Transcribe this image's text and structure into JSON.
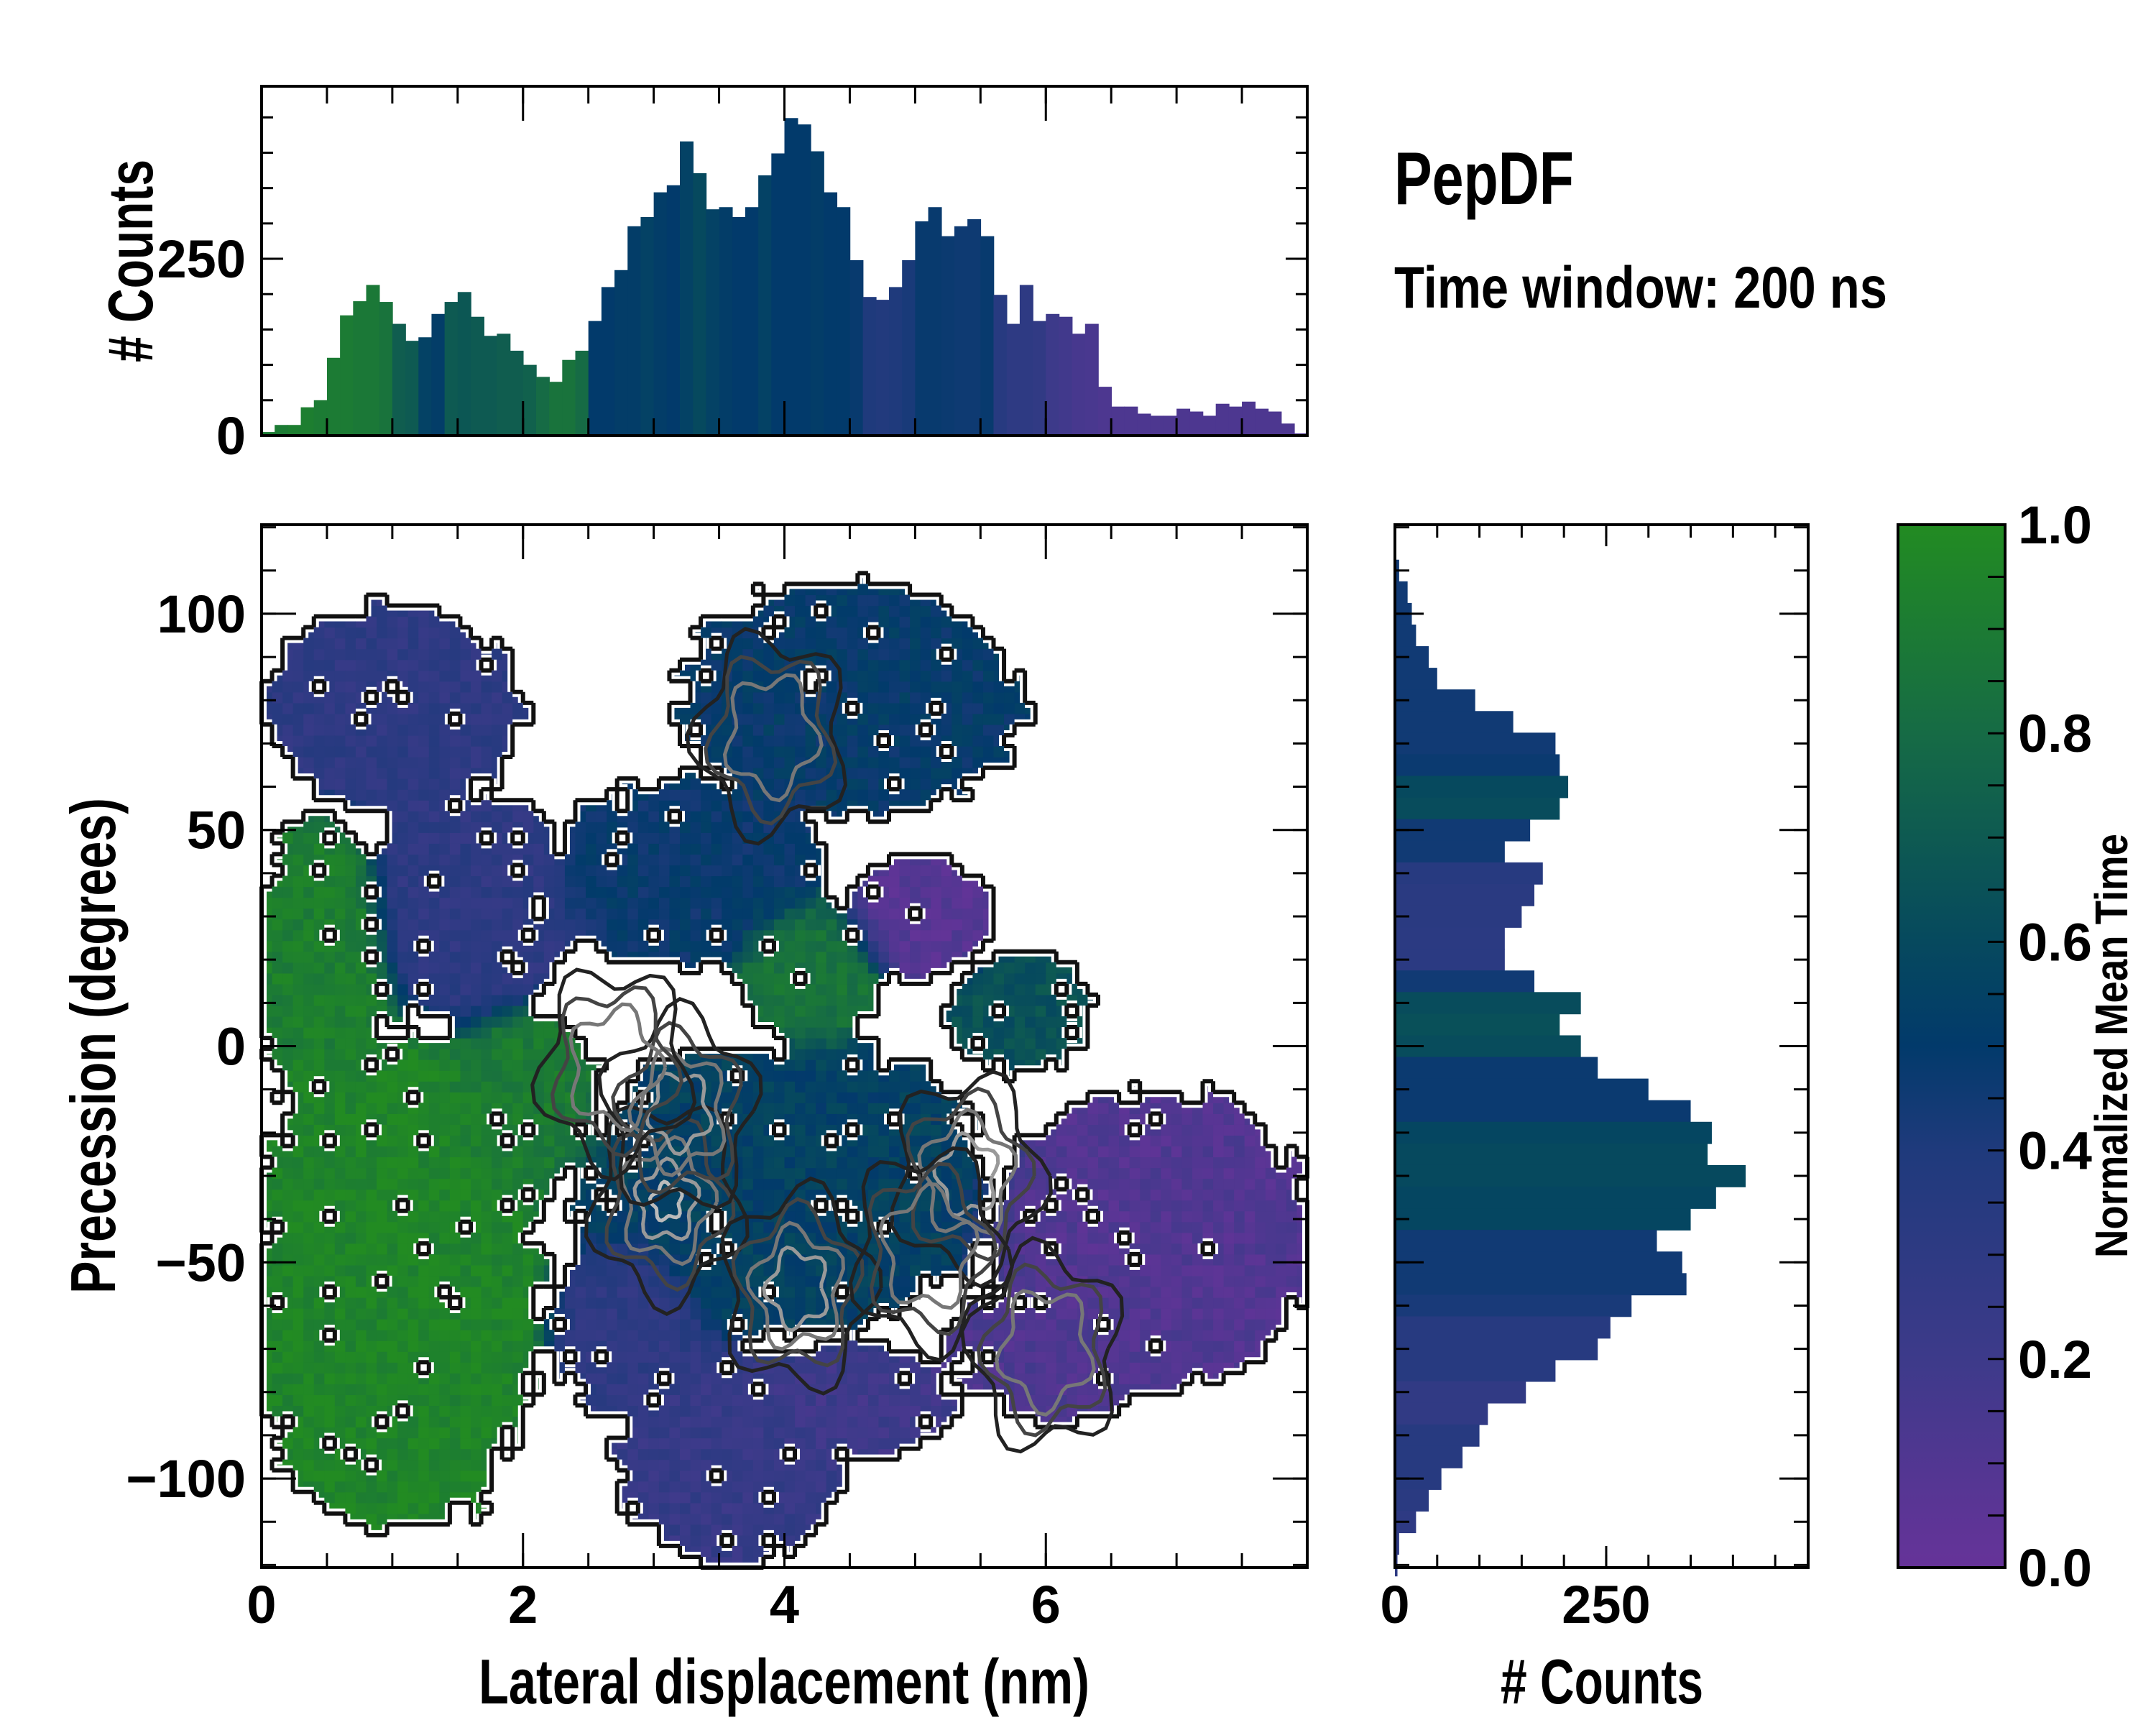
{
  "title": "PepDF",
  "subtitle": "Time window: 200 ns",
  "colors": {
    "c0": "#663399",
    "c02": "#3d3a8a",
    "c04": "#1f3a7c",
    "c05": "#023a6b",
    "c06": "#06495e",
    "c08": "#166b45",
    "c10": "#228b22"
  },
  "chart_data": [
    {
      "id": "main",
      "type": "heatmap",
      "xlabel": "Lateral displacement (nm)",
      "ylabel": "Precession (degrees)",
      "xlim": [
        0,
        8
      ],
      "ylim": [
        -120.6,
        120.6
      ],
      "xticks": [
        0,
        2,
        4,
        6
      ],
      "xtick_labels": [
        "0",
        "2",
        "4",
        "6"
      ],
      "yticks": [
        -100,
        -50,
        0,
        50,
        100
      ],
      "ytick_labels": [
        "−100",
        "−50",
        "0",
        "50",
        "100"
      ],
      "color_value": "Normalized Mean Time",
      "regions": [
        {
          "cx": 1.0,
          "cy": -55,
          "rx": 1.15,
          "ry": 60,
          "value": 0.96
        },
        {
          "cx": 0.45,
          "cy": 20,
          "rx": 0.55,
          "ry": 32,
          "value": 0.92
        },
        {
          "cx": 1.0,
          "cy": 78,
          "rx": 1.0,
          "ry": 24,
          "value": 0.3
        },
        {
          "cx": 1.6,
          "cy": 32,
          "rx": 0.8,
          "ry": 28,
          "value": 0.3
        },
        {
          "cx": 2.0,
          "cy": -12,
          "rx": 0.6,
          "ry": 22,
          "value": 0.9
        },
        {
          "cx": 4.5,
          "cy": 80,
          "rx": 1.3,
          "ry": 28,
          "value": 0.5
        },
        {
          "cx": 3.3,
          "cy": 40,
          "rx": 1.1,
          "ry": 22,
          "value": 0.48
        },
        {
          "cx": 4.2,
          "cy": 18,
          "rx": 0.6,
          "ry": 18,
          "value": 0.85
        },
        {
          "cx": 5.0,
          "cy": 30,
          "rx": 0.6,
          "ry": 15,
          "value": 0.08
        },
        {
          "cx": 5.8,
          "cy": 8,
          "rx": 0.55,
          "ry": 14,
          "value": 0.65
        },
        {
          "cx": 4.0,
          "cy": -33,
          "rx": 1.6,
          "ry": 35,
          "value": 0.55
        },
        {
          "cx": 3.6,
          "cy": -95,
          "rx": 0.9,
          "ry": 25,
          "value": 0.25
        },
        {
          "cx": 4.5,
          "cy": -82,
          "rx": 0.8,
          "ry": 14,
          "value": 0.2
        },
        {
          "cx": 6.8,
          "cy": -45,
          "rx": 1.25,
          "ry": 35,
          "value": 0.1
        },
        {
          "cx": 6.1,
          "cy": -70,
          "rx": 0.9,
          "ry": 16,
          "value": 0.12
        },
        {
          "cx": 2.8,
          "cy": -65,
          "rx": 0.6,
          "ry": 22,
          "value": 0.3
        }
      ],
      "density_peaks": [
        {
          "x": 3.1,
          "y": -36,
          "level": 4
        },
        {
          "x": 5.4,
          "y": -30,
          "level": 3
        },
        {
          "x": 4.1,
          "y": -56,
          "level": 3
        },
        {
          "x": 3.2,
          "y": -15,
          "level": 3
        },
        {
          "x": 6.0,
          "y": -70,
          "level": 2
        },
        {
          "x": 3.9,
          "y": 72,
          "level": 2
        },
        {
          "x": 2.7,
          "y": -5,
          "level": 2
        },
        {
          "x": 5.1,
          "y": -47,
          "level": 2
        }
      ]
    },
    {
      "id": "top-histogram",
      "type": "bar",
      "ylabel": "# Counts",
      "xlim": [
        0,
        8
      ],
      "ylim": [
        0,
        494
      ],
      "yticks": [
        0,
        250
      ],
      "ytick_labels": [
        "0",
        "250"
      ],
      "bin_width": 0.1,
      "x": [
        0.0,
        0.1,
        0.2,
        0.3,
        0.4,
        0.5,
        0.6,
        0.7,
        0.8,
        0.9,
        1.0,
        1.1,
        1.2,
        1.3,
        1.4,
        1.5,
        1.6,
        1.7,
        1.8,
        1.9,
        2.0,
        2.1,
        2.2,
        2.3,
        2.4,
        2.5,
        2.6,
        2.7,
        2.8,
        2.9,
        3.0,
        3.1,
        3.2,
        3.3,
        3.4,
        3.5,
        3.6,
        3.7,
        3.8,
        3.9,
        4.0,
        4.1,
        4.2,
        4.3,
        4.4,
        4.5,
        4.6,
        4.7,
        4.8,
        4.9,
        5.0,
        5.1,
        5.2,
        5.3,
        5.4,
        5.5,
        5.6,
        5.7,
        5.8,
        5.9,
        6.0,
        6.1,
        6.2,
        6.3,
        6.4,
        6.5,
        6.6,
        6.7,
        6.8,
        6.9,
        7.0,
        7.1,
        7.2,
        7.3,
        7.4,
        7.5,
        7.6,
        7.7,
        7.8,
        7.9
      ],
      "values": [
        5,
        15,
        15,
        40,
        50,
        110,
        170,
        190,
        213,
        189,
        158,
        134,
        139,
        172,
        189,
        203,
        168,
        141,
        144,
        120,
        100,
        83,
        76,
        107,
        120,
        162,
        210,
        234,
        296,
        309,
        344,
        354,
        416,
        371,
        320,
        323,
        309,
        323,
        368,
        399,
        449,
        440,
        402,
        344,
        323,
        248,
        196,
        192,
        210,
        248,
        303,
        323,
        282,
        296,
        306,
        282,
        199,
        158,
        213,
        162,
        172,
        168,
        144,
        158,
        69,
        41,
        41,
        31,
        28,
        28,
        38,
        34,
        28,
        45,
        41,
        48,
        38,
        34,
        17,
        3
      ],
      "mean_time": [
        0.9,
        0.9,
        0.92,
        0.92,
        0.9,
        0.9,
        0.9,
        0.88,
        0.88,
        0.85,
        0.72,
        0.7,
        0.55,
        0.52,
        0.7,
        0.68,
        0.7,
        0.7,
        0.72,
        0.72,
        0.74,
        0.8,
        0.85,
        0.85,
        0.8,
        0.5,
        0.5,
        0.52,
        0.52,
        0.55,
        0.52,
        0.5,
        0.55,
        0.6,
        0.55,
        0.52,
        0.5,
        0.5,
        0.55,
        0.5,
        0.5,
        0.5,
        0.52,
        0.5,
        0.5,
        0.48,
        0.4,
        0.38,
        0.4,
        0.42,
        0.48,
        0.48,
        0.47,
        0.46,
        0.46,
        0.48,
        0.35,
        0.3,
        0.3,
        0.28,
        0.2,
        0.18,
        0.15,
        0.14,
        0.12,
        0.12,
        0.12,
        0.12,
        0.12,
        0.12,
        0.12,
        0.12,
        0.12,
        0.12,
        0.12,
        0.12,
        0.12,
        0.12,
        0.12,
        0.12
      ]
    },
    {
      "id": "right-histogram",
      "type": "bar",
      "orientation": "horizontal",
      "xlabel": "# Counts",
      "xlim": [
        0,
        489
      ],
      "ylim": [
        -120.6,
        120.6
      ],
      "xticks": [
        0,
        250
      ],
      "xtick_labels": [
        "0",
        "250"
      ],
      "bin_width": 5,
      "y": [
        110,
        105,
        100,
        95,
        90,
        85,
        80,
        75,
        70,
        65,
        60,
        55,
        50,
        45,
        40,
        35,
        30,
        25,
        20,
        15,
        10,
        5,
        0,
        -5,
        -10,
        -15,
        -20,
        -25,
        -30,
        -35,
        -40,
        -45,
        -50,
        -55,
        -60,
        -65,
        -70,
        -75,
        -80,
        -85,
        -90,
        -95,
        -100,
        -105,
        -110,
        -115,
        -120
      ],
      "values": [
        5,
        15,
        20,
        25,
        40,
        50,
        95,
        140,
        190,
        195,
        205,
        195,
        160,
        130,
        175,
        165,
        150,
        130,
        130,
        165,
        220,
        195,
        220,
        240,
        300,
        350,
        375,
        370,
        415,
        380,
        350,
        310,
        340,
        345,
        280,
        255,
        240,
        190,
        155,
        110,
        100,
        80,
        55,
        40,
        25,
        5,
        3
      ],
      "mean_time": [
        0.45,
        0.45,
        0.45,
        0.45,
        0.45,
        0.45,
        0.45,
        0.45,
        0.45,
        0.47,
        0.6,
        0.62,
        0.45,
        0.45,
        0.35,
        0.33,
        0.33,
        0.32,
        0.32,
        0.45,
        0.62,
        0.64,
        0.62,
        0.47,
        0.47,
        0.47,
        0.58,
        0.6,
        0.6,
        0.58,
        0.58,
        0.45,
        0.45,
        0.45,
        0.42,
        0.35,
        0.35,
        0.35,
        0.28,
        0.28,
        0.35,
        0.35,
        0.35,
        0.33,
        0.3,
        0.3,
        0.3
      ]
    },
    {
      "id": "colorbar",
      "type": "colorbar",
      "label": "Normalized Mean Time",
      "lim": [
        0,
        1
      ],
      "ticks": [
        0.0,
        0.2,
        0.4,
        0.6,
        0.8,
        1.0
      ],
      "tick_labels": [
        "0.0",
        "0.2",
        "0.4",
        "0.6",
        "0.8",
        "1.0"
      ]
    }
  ]
}
